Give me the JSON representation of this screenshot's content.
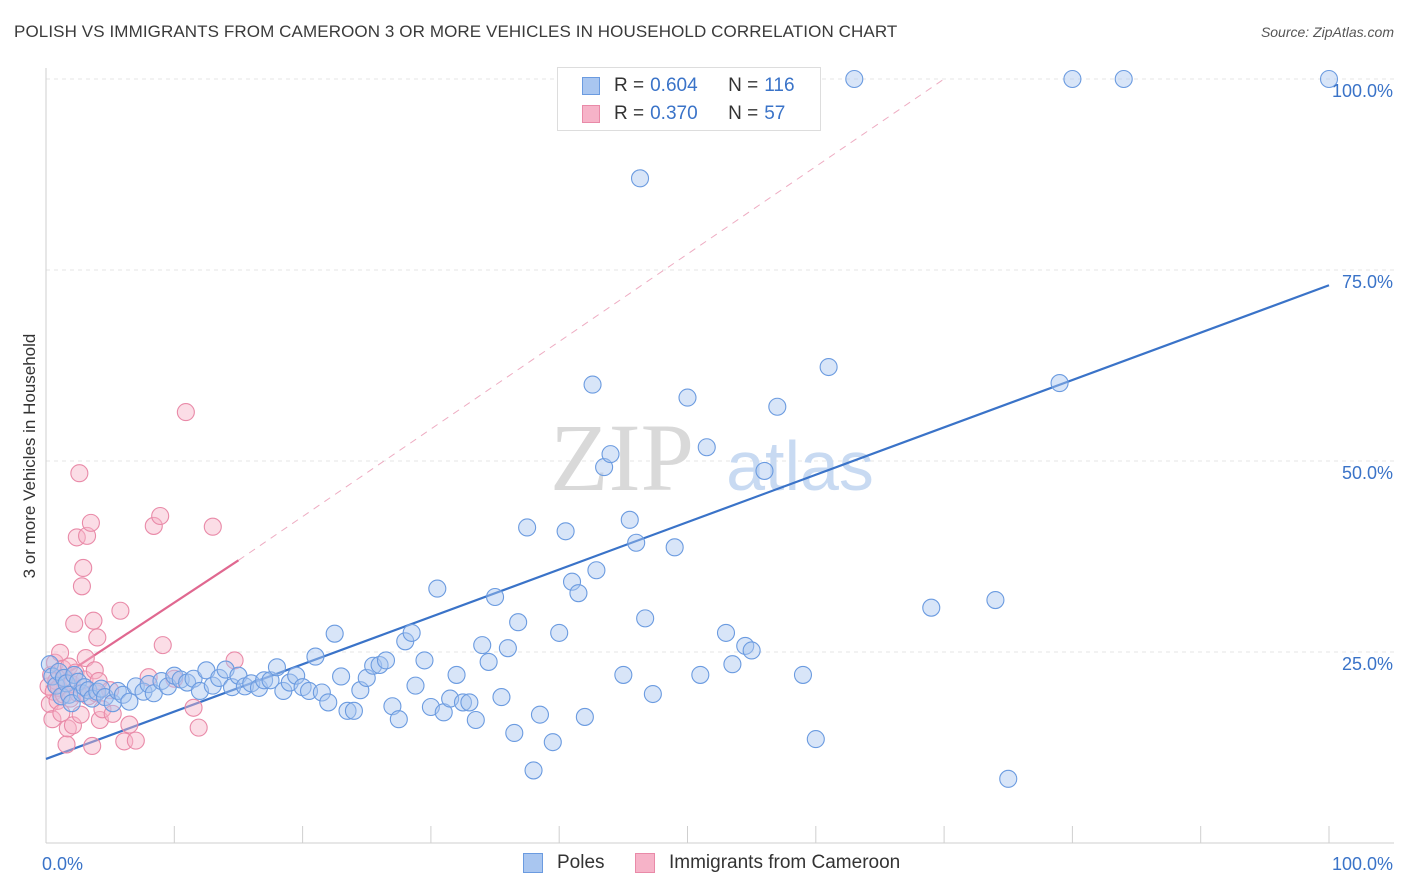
{
  "title": "POLISH VS IMMIGRANTS FROM CAMEROON 3 OR MORE VEHICLES IN HOUSEHOLD CORRELATION CHART",
  "source": "Source: ZipAtlas.com",
  "watermark": {
    "zip": "ZIP",
    "atlas": "atlas"
  },
  "legend": {
    "poles": {
      "r_label": "R =",
      "r_value": "0.604",
      "n_label": "N =",
      "n_value": "116"
    },
    "cameroon": {
      "r_label": "R =",
      "r_value": "0.370",
      "n_label": "N =",
      "n_value": "57"
    }
  },
  "colors": {
    "poles_fill": "#a9c6f0",
    "poles_stroke": "#6b9be0",
    "poles_line": "#3a73c8",
    "cameroon_fill": "#f6b3c8",
    "cameroon_stroke": "#e98aa8",
    "cameroon_line": "#e06890",
    "tick_label": "#3a73c8",
    "grid": "#e6e6e6"
  },
  "chart_data": {
    "type": "scatter",
    "title": "POLISH VS IMMIGRANTS FROM CAMEROON 3 OR MORE VEHICLES IN HOUSEHOLD CORRELATION CHART",
    "xlabel": "",
    "ylabel": "3 or more Vehicles in Household",
    "xlim": [
      0,
      100
    ],
    "ylim": [
      0,
      100
    ],
    "x_ticks": [
      {
        "value": 0,
        "label": "0.0%"
      },
      {
        "value": 100,
        "label": "100.0%"
      }
    ],
    "y_ticks": [
      {
        "value": 25,
        "label": "25.0%"
      },
      {
        "value": 50,
        "label": "50.0%"
      },
      {
        "value": 75,
        "label": "75.0%"
      },
      {
        "value": 100,
        "label": "100.0%"
      }
    ],
    "grid": true,
    "legend_position": "top-center",
    "series": [
      {
        "name": "Poles",
        "points": [
          [
            0.3,
            23.4
          ],
          [
            0.5,
            21.8
          ],
          [
            0.8,
            20.6
          ],
          [
            1.0,
            22.4
          ],
          [
            1.2,
            19.2
          ],
          [
            1.4,
            21.6
          ],
          [
            1.6,
            20.9
          ],
          [
            1.8,
            19.4
          ],
          [
            2.0,
            18.3
          ],
          [
            2.2,
            22.0
          ],
          [
            2.5,
            21.1
          ],
          [
            2.8,
            19.6
          ],
          [
            3.0,
            20.4
          ],
          [
            3.3,
            20.0
          ],
          [
            3.6,
            18.9
          ],
          [
            4.0,
            19.8
          ],
          [
            4.3,
            20.2
          ],
          [
            4.6,
            19.1
          ],
          [
            5.2,
            18.3
          ],
          [
            5.6,
            19.9
          ],
          [
            6.0,
            19.4
          ],
          [
            6.5,
            18.5
          ],
          [
            7.0,
            20.5
          ],
          [
            7.6,
            19.8
          ],
          [
            8.0,
            20.8
          ],
          [
            8.4,
            19.6
          ],
          [
            9.0,
            21.2
          ],
          [
            9.5,
            20.5
          ],
          [
            10.0,
            21.9
          ],
          [
            10.5,
            21.4
          ],
          [
            11.0,
            21.0
          ],
          [
            11.5,
            21.5
          ],
          [
            12.0,
            19.9
          ],
          [
            12.5,
            22.6
          ],
          [
            13.0,
            20.6
          ],
          [
            13.5,
            21.6
          ],
          [
            14.0,
            22.7
          ],
          [
            14.5,
            20.4
          ],
          [
            15.0,
            21.9
          ],
          [
            15.5,
            20.5
          ],
          [
            16.0,
            20.9
          ],
          [
            16.6,
            20.3
          ],
          [
            17.0,
            21.3
          ],
          [
            17.5,
            21.3
          ],
          [
            18.0,
            23.0
          ],
          [
            18.5,
            19.9
          ],
          [
            19.0,
            21.0
          ],
          [
            19.5,
            21.9
          ],
          [
            20.0,
            20.4
          ],
          [
            20.5,
            19.9
          ],
          [
            21.0,
            24.4
          ],
          [
            21.5,
            19.7
          ],
          [
            22.0,
            18.4
          ],
          [
            22.5,
            27.4
          ],
          [
            23.0,
            21.8
          ],
          [
            23.5,
            17.3
          ],
          [
            24.0,
            17.3
          ],
          [
            24.5,
            20.0
          ],
          [
            25.0,
            21.6
          ],
          [
            25.5,
            23.2
          ],
          [
            26.0,
            23.3
          ],
          [
            26.5,
            23.9
          ],
          [
            27.0,
            17.9
          ],
          [
            27.5,
            16.2
          ],
          [
            28.0,
            26.4
          ],
          [
            28.5,
            27.5
          ],
          [
            28.8,
            20.6
          ],
          [
            29.5,
            23.9
          ],
          [
            30.0,
            17.8
          ],
          [
            30.5,
            33.3
          ],
          [
            31.0,
            17.1
          ],
          [
            31.5,
            18.9
          ],
          [
            32.0,
            22.0
          ],
          [
            32.5,
            18.4
          ],
          [
            33.0,
            18.4
          ],
          [
            33.5,
            16.1
          ],
          [
            34.0,
            25.9
          ],
          [
            34.5,
            23.7
          ],
          [
            35.0,
            32.2
          ],
          [
            35.5,
            19.1
          ],
          [
            36.0,
            25.5
          ],
          [
            36.5,
            14.4
          ],
          [
            36.8,
            28.9
          ],
          [
            37.5,
            41.3
          ],
          [
            38.0,
            9.5
          ],
          [
            38.5,
            16.8
          ],
          [
            39.5,
            13.2
          ],
          [
            40.0,
            27.5
          ],
          [
            40.5,
            40.8
          ],
          [
            41.0,
            34.2
          ],
          [
            41.5,
            32.7
          ],
          [
            42.0,
            16.5
          ],
          [
            42.6,
            60.0
          ],
          [
            42.9,
            35.7
          ],
          [
            43.5,
            49.2
          ],
          [
            44.0,
            50.9
          ],
          [
            45.0,
            22.0
          ],
          [
            45.5,
            42.3
          ],
          [
            46.0,
            39.3
          ],
          [
            46.3,
            87.0
          ],
          [
            46.7,
            29.4
          ],
          [
            47.3,
            19.5
          ],
          [
            49.0,
            38.7
          ],
          [
            50.0,
            58.3
          ],
          [
            51.0,
            22.0
          ],
          [
            51.5,
            51.8
          ],
          [
            53.0,
            27.5
          ],
          [
            53.5,
            23.4
          ],
          [
            54.5,
            25.8
          ],
          [
            55.0,
            25.2
          ],
          [
            56.0,
            48.7
          ],
          [
            57.0,
            57.1
          ],
          [
            59.0,
            22.0
          ],
          [
            60.0,
            13.6
          ],
          [
            61.0,
            62.3
          ],
          [
            63.0,
            100.0
          ],
          [
            69.0,
            30.8
          ],
          [
            74.0,
            31.8
          ],
          [
            75.0,
            8.4
          ],
          [
            79.0,
            60.2
          ],
          [
            80.0,
            100.0
          ],
          [
            84.0,
            100.0
          ],
          [
            100.0,
            100.0
          ]
        ]
      },
      {
        "name": "Immigrants from Cameroon",
        "points": [
          [
            0.2,
            20.5
          ],
          [
            0.3,
            18.2
          ],
          [
            0.4,
            22.0
          ],
          [
            0.5,
            16.2
          ],
          [
            0.6,
            19.8
          ],
          [
            0.7,
            23.6
          ],
          [
            0.8,
            21.2
          ],
          [
            0.9,
            18.6
          ],
          [
            1.0,
            20.3
          ],
          [
            1.1,
            24.9
          ],
          [
            1.2,
            17.0
          ],
          [
            1.3,
            22.8
          ],
          [
            1.4,
            19.4
          ],
          [
            1.5,
            21.6
          ],
          [
            1.6,
            12.9
          ],
          [
            1.7,
            15.0
          ],
          [
            1.8,
            23.1
          ],
          [
            1.9,
            18.9
          ],
          [
            2.0,
            20.8
          ],
          [
            2.1,
            15.4
          ],
          [
            2.2,
            28.7
          ],
          [
            2.3,
            22.3
          ],
          [
            2.4,
            40.0
          ],
          [
            2.5,
            19.6
          ],
          [
            2.6,
            48.4
          ],
          [
            2.7,
            16.8
          ],
          [
            2.8,
            33.6
          ],
          [
            2.9,
            36.0
          ],
          [
            3.0,
            21.4
          ],
          [
            3.1,
            24.2
          ],
          [
            3.2,
            40.2
          ],
          [
            3.3,
            19.2
          ],
          [
            3.5,
            41.9
          ],
          [
            3.6,
            12.7
          ],
          [
            3.7,
            29.1
          ],
          [
            3.8,
            22.6
          ],
          [
            3.9,
            19.6
          ],
          [
            4.0,
            26.9
          ],
          [
            4.1,
            21.2
          ],
          [
            4.2,
            16.1
          ],
          [
            4.4,
            17.5
          ],
          [
            5.0,
            20.0
          ],
          [
            5.2,
            16.9
          ],
          [
            5.8,
            30.4
          ],
          [
            6.1,
            13.3
          ],
          [
            6.5,
            15.5
          ],
          [
            7.0,
            13.4
          ],
          [
            8.0,
            21.7
          ],
          [
            8.4,
            41.5
          ],
          [
            8.9,
            42.8
          ],
          [
            9.1,
            25.9
          ],
          [
            10.0,
            21.5
          ],
          [
            10.9,
            56.4
          ],
          [
            11.5,
            17.7
          ],
          [
            11.9,
            15.1
          ],
          [
            13.0,
            41.4
          ],
          [
            14.7,
            23.9
          ]
        ]
      }
    ],
    "trendlines": [
      {
        "series": "Poles",
        "from": [
          0,
          11.0
        ],
        "to": [
          100,
          73.0
        ],
        "style": "solid"
      },
      {
        "series": "Immigrants from Cameroon",
        "from": [
          0,
          20.4
        ],
        "to": [
          15,
          37.0
        ],
        "style": "solid"
      },
      {
        "series": "Immigrants from Cameroon",
        "from": [
          15,
          37.0
        ],
        "to": [
          70,
          100.0
        ],
        "style": "dashed"
      }
    ]
  },
  "bottom_legend": {
    "poles": "Poles",
    "cameroon": "Immigrants from Cameroon"
  }
}
